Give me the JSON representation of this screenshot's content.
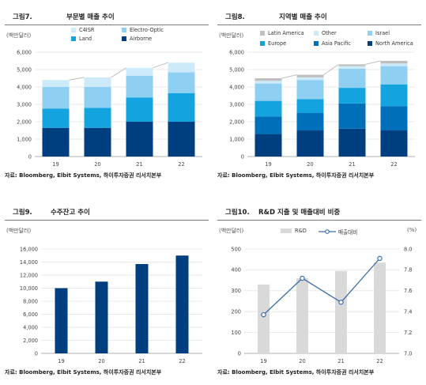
{
  "colors": {
    "navy": "#003f7f",
    "mid_blue": "#006fb9",
    "cyan": "#13a4e0",
    "light_blue": "#8fd0f2",
    "pale_blue": "#cdeafa",
    "gray_bar": "#d9d9d9",
    "line": "#3a6ea5",
    "top_gray": "#bfbfbf"
  },
  "figures": [
    {
      "number": "그림7.",
      "title": "부문별 매출 추이",
      "unit": "(백만달러)",
      "source": "자료: Bloomberg, Elbit Systems, 하이투자증권 리서치본부"
    },
    {
      "number": "그림8.",
      "title": "지역별 매출 추이",
      "unit": "(백만달러)",
      "source": "자료: Bloomberg, Elbit Systems, 하이투자증권 리서치본부"
    },
    {
      "number": "그림9.",
      "title": "수주잔고 추이",
      "unit": "(백만달러)",
      "source": "자료: Bloomberg, Elbit Systems, 하이투자증권 리서치본부"
    },
    {
      "number": "그림10.",
      "title": "R&D 지출 및 매출대비 비중",
      "unit": "(백만달러)",
      "unit_right": "(%)",
      "source": "자료: Bloomberg, Elbit Systems, 하이투자증권 리서치본부"
    }
  ],
  "chart_data": [
    {
      "type": "bar",
      "stacked": true,
      "categories": [
        "19",
        "20",
        "21",
        "22"
      ],
      "ylim": [
        0,
        6000
      ],
      "yticks": [
        "0",
        "1,000",
        "2,000",
        "3,000",
        "4,000",
        "5,000",
        "6,000"
      ],
      "series": [
        {
          "name": "Airborne",
          "color": "#003f7f",
          "values": [
            1650,
            1650,
            2000,
            2000
          ]
        },
        {
          "name": "Land",
          "color": "#13a4e0",
          "values": [
            1100,
            1150,
            1400,
            1650
          ]
        },
        {
          "name": "Electro-Optic",
          "color": "#8fd0f2",
          "values": [
            1250,
            1200,
            1250,
            1200
          ]
        },
        {
          "name": "C4ISR",
          "color": "#cdeafa",
          "values": [
            400,
            550,
            450,
            550
          ]
        }
      ],
      "legend_order": [
        "C4ISR",
        "Electro-Optic",
        "Land",
        "Airborne"
      ],
      "grid": true
    },
    {
      "type": "bar",
      "stacked": true,
      "categories": [
        "19",
        "20",
        "21",
        "22"
      ],
      "ylim": [
        0,
        6000
      ],
      "yticks": [
        "0",
        "1,000",
        "2,000",
        "3,000",
        "4,000",
        "5,000",
        "6,000"
      ],
      "series": [
        {
          "name": "North America",
          "color": "#003f7f",
          "values": [
            1300,
            1500,
            1600,
            1500
          ]
        },
        {
          "name": "Asia Pacific",
          "color": "#006fb9",
          "values": [
            1000,
            1000,
            1450,
            1400
          ]
        },
        {
          "name": "Europe",
          "color": "#13a4e0",
          "values": [
            900,
            800,
            900,
            1250
          ]
        },
        {
          "name": "Israel",
          "color": "#8fd0f2",
          "values": [
            1000,
            1100,
            1100,
            1050
          ]
        },
        {
          "name": "Other",
          "color": "#cdeafa",
          "values": [
            150,
            150,
            150,
            150
          ]
        },
        {
          "name": "Latin America",
          "color": "#bfbfbf",
          "values": [
            150,
            150,
            100,
            150
          ]
        }
      ],
      "legend_order": [
        "Latin America",
        "Other",
        "Israel",
        "Europe",
        "Asia Pacific",
        "North America"
      ],
      "grid": true
    },
    {
      "type": "bar",
      "categories": [
        "19",
        "20",
        "21",
        "22"
      ],
      "ylim": [
        0,
        16000
      ],
      "yticks": [
        "0",
        "2,000",
        "4,000",
        "6,000",
        "8,000",
        "10,000",
        "12,000",
        "14,000",
        "16,000"
      ],
      "values": [
        10000,
        11000,
        13700,
        15000
      ],
      "color": "#003f7f",
      "grid": true
    },
    {
      "type": "bar+line",
      "categories": [
        "19",
        "20",
        "21",
        "22"
      ],
      "bars": {
        "name": "R&D",
        "color": "#d9d9d9",
        "values": [
          330,
          360,
          395,
          435
        ]
      },
      "line": {
        "name": "매출대비",
        "color": "#3a6ea5",
        "values": [
          7.37,
          7.72,
          7.49,
          7.91
        ]
      },
      "ylim_left": [
        0,
        500
      ],
      "ylim_right": [
        7.0,
        8.0
      ],
      "yticks_left": [
        "0",
        "100",
        "200",
        "300",
        "400",
        "500"
      ],
      "yticks_right": [
        "7.0",
        "7.2",
        "7.4",
        "7.6",
        "7.8",
        "8.0"
      ],
      "grid": true
    }
  ]
}
